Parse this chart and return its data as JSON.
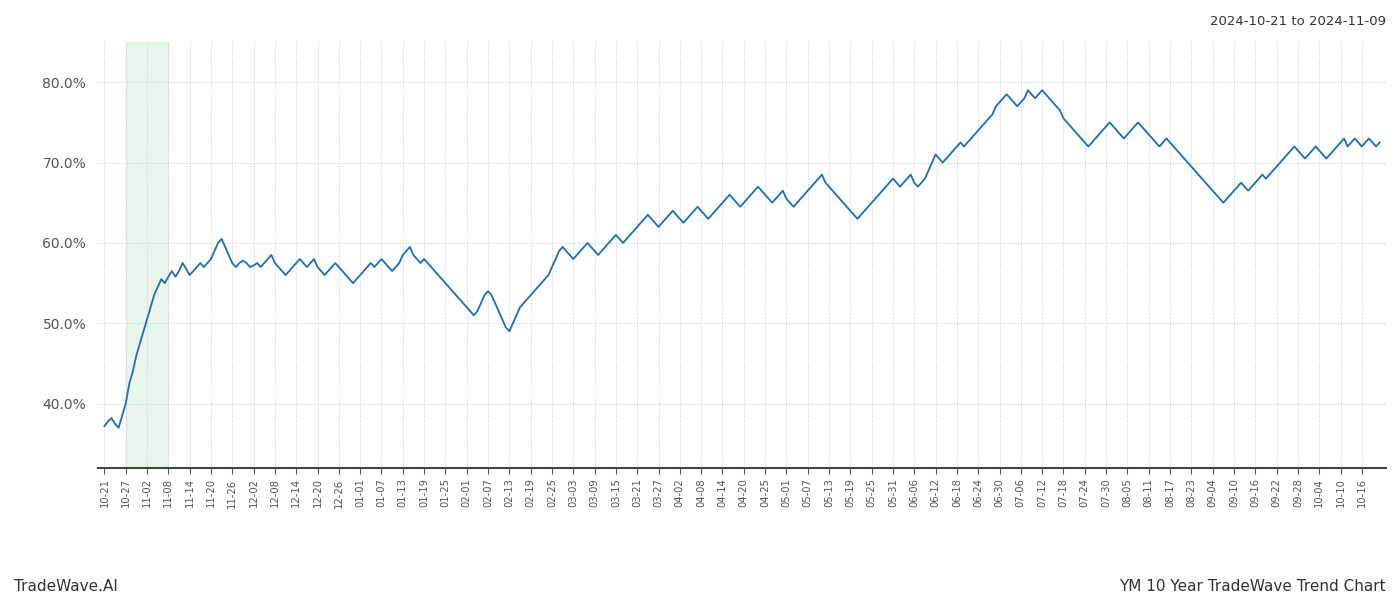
{
  "title_top_right": "2024-10-21 to 2024-11-09",
  "bottom_left": "TradeWave.AI",
  "bottom_right": "YM 10 Year TradeWave Trend Chart",
  "line_color": "#1f6eb5",
  "line_width": 1.3,
  "shade_color": "#d4edda",
  "shade_alpha": 0.55,
  "background_color": "#ffffff",
  "grid_color": "#cccccc",
  "grid_style": "dotted",
  "ylim": [
    32,
    85
  ],
  "yticks": [
    40.0,
    50.0,
    60.0,
    70.0,
    80.0
  ],
  "x_labels": [
    "10-21",
    "10-27",
    "11-02",
    "11-08",
    "11-14",
    "11-20",
    "11-26",
    "12-02",
    "12-08",
    "12-14",
    "12-20",
    "12-26",
    "01-01",
    "01-07",
    "01-13",
    "01-19",
    "01-25",
    "02-01",
    "02-07",
    "02-13",
    "02-19",
    "02-25",
    "03-03",
    "03-09",
    "03-15",
    "03-21",
    "03-27",
    "04-02",
    "04-08",
    "04-14",
    "04-20",
    "04-25",
    "05-01",
    "05-07",
    "05-13",
    "05-19",
    "05-25",
    "05-31",
    "06-06",
    "06-12",
    "06-18",
    "06-24",
    "06-30",
    "07-06",
    "07-12",
    "07-18",
    "07-24",
    "07-30",
    "08-05",
    "08-11",
    "08-17",
    "08-23",
    "09-04",
    "09-10",
    "09-16",
    "09-22",
    "09-28",
    "10-04",
    "10-10",
    "10-16"
  ],
  "shade_start_label": "10-27",
  "shade_end_label": "11-08",
  "y_values": [
    37.2,
    37.8,
    38.2,
    37.5,
    37.0,
    38.5,
    40.0,
    42.5,
    44.0,
    46.0,
    47.5,
    49.0,
    50.5,
    52.0,
    53.5,
    54.5,
    55.5,
    55.0,
    55.8,
    56.5,
    55.8,
    56.5,
    57.5,
    56.8,
    56.0,
    56.5,
    57.0,
    57.5,
    57.0,
    57.5,
    58.0,
    59.0,
    60.0,
    60.5,
    59.5,
    58.5,
    57.5,
    57.0,
    57.5,
    57.8,
    57.5,
    57.0,
    57.2,
    57.5,
    57.0,
    57.5,
    58.0,
    58.5,
    57.5,
    57.0,
    56.5,
    56.0,
    56.5,
    57.0,
    57.5,
    58.0,
    57.5,
    57.0,
    57.5,
    58.0,
    57.0,
    56.5,
    56.0,
    56.5,
    57.0,
    57.5,
    57.0,
    56.5,
    56.0,
    55.5,
    55.0,
    55.5,
    56.0,
    56.5,
    57.0,
    57.5,
    57.0,
    57.5,
    58.0,
    57.5,
    57.0,
    56.5,
    57.0,
    57.5,
    58.5,
    59.0,
    59.5,
    58.5,
    58.0,
    57.5,
    58.0,
    57.5,
    57.0,
    56.5,
    56.0,
    55.5,
    55.0,
    54.5,
    54.0,
    53.5,
    53.0,
    52.5,
    52.0,
    51.5,
    51.0,
    51.5,
    52.5,
    53.5,
    54.0,
    53.5,
    52.5,
    51.5,
    50.5,
    49.5,
    49.0,
    50.0,
    51.0,
    52.0,
    52.5,
    53.0,
    53.5,
    54.0,
    54.5,
    55.0,
    55.5,
    56.0,
    57.0,
    58.0,
    59.0,
    59.5,
    59.0,
    58.5,
    58.0,
    58.5,
    59.0,
    59.5,
    60.0,
    59.5,
    59.0,
    58.5,
    59.0,
    59.5,
    60.0,
    60.5,
    61.0,
    60.5,
    60.0,
    60.5,
    61.0,
    61.5,
    62.0,
    62.5,
    63.0,
    63.5,
    63.0,
    62.5,
    62.0,
    62.5,
    63.0,
    63.5,
    64.0,
    63.5,
    63.0,
    62.5,
    63.0,
    63.5,
    64.0,
    64.5,
    64.0,
    63.5,
    63.0,
    63.5,
    64.0,
    64.5,
    65.0,
    65.5,
    66.0,
    65.5,
    65.0,
    64.5,
    65.0,
    65.5,
    66.0,
    66.5,
    67.0,
    66.5,
    66.0,
    65.5,
    65.0,
    65.5,
    66.0,
    66.5,
    65.5,
    65.0,
    64.5,
    65.0,
    65.5,
    66.0,
    66.5,
    67.0,
    67.5,
    68.0,
    68.5,
    67.5,
    67.0,
    66.5,
    66.0,
    65.5,
    65.0,
    64.5,
    64.0,
    63.5,
    63.0,
    63.5,
    64.0,
    64.5,
    65.0,
    65.5,
    66.0,
    66.5,
    67.0,
    67.5,
    68.0,
    67.5,
    67.0,
    67.5,
    68.0,
    68.5,
    67.5,
    67.0,
    67.5,
    68.0,
    69.0,
    70.0,
    71.0,
    70.5,
    70.0,
    70.5,
    71.0,
    71.5,
    72.0,
    72.5,
    72.0,
    72.5,
    73.0,
    73.5,
    74.0,
    74.5,
    75.0,
    75.5,
    76.0,
    77.0,
    77.5,
    78.0,
    78.5,
    78.0,
    77.5,
    77.0,
    77.5,
    78.0,
    79.0,
    78.5,
    78.0,
    78.5,
    79.0,
    78.5,
    78.0,
    77.5,
    77.0,
    76.5,
    75.5,
    75.0,
    74.5,
    74.0,
    73.5,
    73.0,
    72.5,
    72.0,
    72.5,
    73.0,
    73.5,
    74.0,
    74.5,
    75.0,
    74.5,
    74.0,
    73.5,
    73.0,
    73.5,
    74.0,
    74.5,
    75.0,
    74.5,
    74.0,
    73.5,
    73.0,
    72.5,
    72.0,
    72.5,
    73.0,
    72.5,
    72.0,
    71.5,
    71.0,
    70.5,
    70.0,
    69.5,
    69.0,
    68.5,
    68.0,
    67.5,
    67.0,
    66.5,
    66.0,
    65.5,
    65.0,
    65.5,
    66.0,
    66.5,
    67.0,
    67.5,
    67.0,
    66.5,
    67.0,
    67.5,
    68.0,
    68.5,
    68.0,
    68.5,
    69.0,
    69.5,
    70.0,
    70.5,
    71.0,
    71.5,
    72.0,
    71.5,
    71.0,
    70.5,
    71.0,
    71.5,
    72.0,
    71.5,
    71.0,
    70.5,
    71.0,
    71.5,
    72.0,
    72.5,
    73.0,
    72.0,
    72.5,
    73.0,
    72.5,
    72.0,
    72.5,
    73.0,
    72.5,
    72.0,
    72.5
  ]
}
